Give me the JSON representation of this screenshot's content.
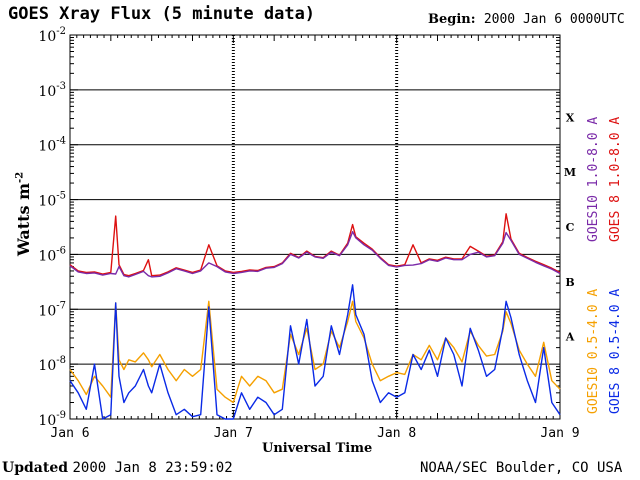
{
  "header": {
    "title": "GOES Xray Flux (5 minute data)",
    "begin_label": "Begin:",
    "begin_value": "2000 Jan 6 0000UTC"
  },
  "footer": {
    "updated_label": "Updated",
    "updated_value": "2000 Jan  8 23:59:02",
    "source": "NOAA/SEC Boulder, CO USA"
  },
  "colors": {
    "goes10_long": "#7a2aa8",
    "goes8_long": "#dd1111",
    "goes10_short": "#f5a000",
    "goes8_short": "#0a2ae6",
    "grid": "#000000"
  },
  "chart_data": {
    "type": "line",
    "title": "GOES Xray Flux (5 minute data)",
    "xlabel": "Universal Time",
    "ylabel": "Watts m",
    "ylabel_exp": "-2",
    "yscale": "log",
    "ylim": [
      1e-09,
      0.01
    ],
    "xlim": [
      0,
      3
    ],
    "x_unit": "days since 2000 Jan 6 00:00 UT",
    "x_ticks": [
      {
        "x": 0,
        "label": "Jan 6"
      },
      {
        "x": 1,
        "label": "Jan 7"
      },
      {
        "x": 2,
        "label": "Jan 8"
      },
      {
        "x": 3,
        "label": "Jan 9"
      }
    ],
    "y_ticks": [
      {
        "exp": -9,
        "label": "10",
        "sup": "-9"
      },
      {
        "exp": -8,
        "label": "10",
        "sup": "-8"
      },
      {
        "exp": -7,
        "label": "10",
        "sup": "-7"
      },
      {
        "exp": -6,
        "label": "10",
        "sup": "-6"
      },
      {
        "exp": -5,
        "label": "10",
        "sup": "-5"
      },
      {
        "exp": -4,
        "label": "10",
        "sup": "-4"
      },
      {
        "exp": -3,
        "label": "10",
        "sup": "-3"
      },
      {
        "exp": -2,
        "label": "10",
        "sup": "-2"
      }
    ],
    "flare_classes": [
      {
        "label": "A",
        "exp": -7.5
      },
      {
        "label": "B",
        "exp": -6.5
      },
      {
        "label": "C",
        "exp": -5.5
      },
      {
        "label": "M",
        "exp": -4.5
      },
      {
        "label": "X",
        "exp": -3.5
      }
    ],
    "grid": true,
    "series": [
      {
        "name": "GOES10 1.0-8.0 A",
        "color": "#7a2aa8",
        "x": [
          0,
          0.05,
          0.1,
          0.15,
          0.2,
          0.25,
          0.28,
          0.3,
          0.33,
          0.36,
          0.4,
          0.45,
          0.48,
          0.5,
          0.55,
          0.6,
          0.65,
          0.7,
          0.75,
          0.8,
          0.85,
          0.9,
          0.95,
          1.0,
          1.05,
          1.1,
          1.15,
          1.2,
          1.25,
          1.3,
          1.35,
          1.4,
          1.45,
          1.5,
          1.55,
          1.6,
          1.65,
          1.7,
          1.73,
          1.75,
          1.8,
          1.85,
          1.9,
          1.95,
          2.0,
          2.05,
          2.1,
          2.15,
          2.2,
          2.25,
          2.3,
          2.35,
          2.4,
          2.45,
          2.5,
          2.55,
          2.6,
          2.65,
          2.67,
          2.7,
          2.75,
          2.8,
          2.85,
          2.9,
          2.95,
          3.0
        ],
        "y": [
          6.2e-07,
          4.8e-07,
          4.5e-07,
          4.6e-07,
          4.2e-07,
          4.5e-07,
          4.4e-07,
          6e-07,
          4.1e-07,
          3.9e-07,
          4.3e-07,
          4.9e-07,
          4.1e-07,
          3.9e-07,
          4e-07,
          4.6e-07,
          5.5e-07,
          5e-07,
          4.5e-07,
          5e-07,
          7e-07,
          6e-07,
          4.8e-07,
          4.5e-07,
          4.7e-07,
          5e-07,
          4.9e-07,
          5.6e-07,
          5.8e-07,
          6.8e-07,
          1e-06,
          8.6e-07,
          1.1e-06,
          9e-07,
          8.5e-07,
          1.1e-06,
          9.5e-07,
          1.5e-06,
          2.6e-06,
          2e-06,
          1.5e-06,
          1.2e-06,
          8.5e-07,
          6.3e-07,
          5.9e-07,
          6.3e-07,
          6.4e-07,
          6.8e-07,
          8e-07,
          7.5e-07,
          8.6e-07,
          8e-07,
          8e-07,
          1e-06,
          1.1e-06,
          9e-07,
          9.5e-07,
          1.6e-06,
          2.5e-06,
          1.8e-06,
          1e-06,
          8.5e-07,
          7.2e-07,
          6.2e-07,
          5.4e-07,
          4.5e-07
        ]
      },
      {
        "name": "GOES 8 1.0-8.0 A",
        "color": "#dd1111",
        "x": [
          0,
          0.05,
          0.1,
          0.15,
          0.2,
          0.25,
          0.28,
          0.3,
          0.33,
          0.36,
          0.4,
          0.45,
          0.48,
          0.5,
          0.55,
          0.6,
          0.65,
          0.7,
          0.75,
          0.8,
          0.85,
          0.9,
          0.95,
          1.0,
          1.05,
          1.1,
          1.15,
          1.2,
          1.25,
          1.3,
          1.35,
          1.4,
          1.45,
          1.5,
          1.55,
          1.6,
          1.65,
          1.7,
          1.73,
          1.75,
          1.8,
          1.85,
          1.9,
          1.95,
          2.0,
          2.05,
          2.1,
          2.15,
          2.2,
          2.25,
          2.3,
          2.35,
          2.4,
          2.45,
          2.5,
          2.55,
          2.6,
          2.65,
          2.67,
          2.7,
          2.75,
          2.8,
          2.85,
          2.9,
          2.95,
          3.0
        ],
        "y": [
          6.5e-07,
          5e-07,
          4.7e-07,
          4.8e-07,
          4.4e-07,
          4.7e-07,
          5e-06,
          6.5e-07,
          4.3e-07,
          4.1e-07,
          4.5e-07,
          5.1e-07,
          8e-07,
          4.1e-07,
          4.2e-07,
          4.8e-07,
          5.7e-07,
          5.2e-07,
          4.7e-07,
          5.2e-07,
          1.5e-06,
          6.2e-07,
          5e-07,
          4.7e-07,
          4.9e-07,
          5.2e-07,
          5.1e-07,
          5.8e-07,
          6e-07,
          7e-07,
          1.05e-06,
          8.8e-07,
          1.15e-06,
          9.2e-07,
          8.7e-07,
          1.15e-06,
          9.7e-07,
          1.6e-06,
          3.5e-06,
          2.1e-06,
          1.6e-06,
          1.25e-06,
          8.8e-07,
          6.5e-07,
          6.1e-07,
          6.5e-07,
          1.5e-06,
          7e-07,
          8.3e-07,
          7.8e-07,
          8.9e-07,
          8.3e-07,
          8.3e-07,
          1.4e-06,
          1.15e-06,
          9.3e-07,
          9.8e-07,
          1.7e-06,
          5.5e-06,
          1.9e-06,
          1.05e-06,
          8.8e-07,
          7.5e-07,
          6.5e-07,
          5.6e-07,
          4.7e-07
        ]
      },
      {
        "name": "GOES10 0.5-4.0 A",
        "color": "#f5a000",
        "x": [
          0,
          0.05,
          0.1,
          0.15,
          0.2,
          0.25,
          0.28,
          0.3,
          0.33,
          0.36,
          0.4,
          0.45,
          0.48,
          0.5,
          0.55,
          0.6,
          0.65,
          0.7,
          0.75,
          0.8,
          0.85,
          0.9,
          0.95,
          1.0,
          1.05,
          1.1,
          1.15,
          1.2,
          1.25,
          1.3,
          1.35,
          1.4,
          1.45,
          1.5,
          1.55,
          1.6,
          1.65,
          1.7,
          1.73,
          1.75,
          1.8,
          1.85,
          1.9,
          1.95,
          2.0,
          2.05,
          2.1,
          2.15,
          2.2,
          2.25,
          2.3,
          2.35,
          2.4,
          2.45,
          2.5,
          2.55,
          2.6,
          2.65,
          2.67,
          2.7,
          2.75,
          2.8,
          2.85,
          2.9,
          2.95,
          3.0
        ],
        "y": [
          8e-09,
          5e-09,
          2.8e-09,
          6e-09,
          4e-09,
          2.5e-09,
          1.3e-07,
          1.2e-08,
          8e-09,
          1.2e-08,
          1.1e-08,
          1.6e-08,
          1.2e-08,
          9e-09,
          1.5e-08,
          8e-09,
          5e-09,
          8e-09,
          6e-09,
          8e-09,
          1.4e-07,
          3.5e-09,
          2.5e-09,
          2e-09,
          6e-09,
          4e-09,
          6e-09,
          5e-09,
          3e-09,
          3.5e-09,
          3.5e-08,
          1.5e-08,
          4.5e-08,
          8e-09,
          1e-08,
          4e-08,
          2e-08,
          6e-08,
          1.4e-07,
          6e-08,
          3e-08,
          1e-08,
          5e-09,
          6e-09,
          7e-09,
          6.5e-09,
          1.5e-08,
          1.2e-08,
          2.2e-08,
          1.2e-08,
          3e-08,
          2e-08,
          1.1e-08,
          4e-08,
          2.2e-08,
          1.4e-08,
          1.5e-08,
          4e-08,
          9e-08,
          5.5e-08,
          1.8e-08,
          1e-08,
          6e-09,
          2.5e-08,
          5e-09,
          3.5e-09
        ]
      },
      {
        "name": "GOES 8 0.5-4.0 A",
        "color": "#0a2ae6",
        "x": [
          0,
          0.05,
          0.1,
          0.15,
          0.2,
          0.25,
          0.28,
          0.3,
          0.33,
          0.36,
          0.4,
          0.45,
          0.48,
          0.5,
          0.55,
          0.6,
          0.65,
          0.7,
          0.75,
          0.8,
          0.85,
          0.9,
          0.95,
          1.0,
          1.05,
          1.1,
          1.15,
          1.2,
          1.25,
          1.3,
          1.35,
          1.4,
          1.45,
          1.5,
          1.55,
          1.6,
          1.65,
          1.7,
          1.73,
          1.75,
          1.8,
          1.85,
          1.9,
          1.95,
          2.0,
          2.05,
          2.1,
          2.15,
          2.2,
          2.25,
          2.3,
          2.35,
          2.4,
          2.45,
          2.5,
          2.55,
          2.6,
          2.65,
          2.67,
          2.7,
          2.75,
          2.8,
          2.85,
          2.9,
          2.95,
          3.0
        ],
        "y": [
          5e-09,
          3e-09,
          1.5e-09,
          1e-08,
          1e-09,
          1.2e-09,
          1.3e-07,
          6e-09,
          2e-09,
          3e-09,
          4e-09,
          8e-09,
          4e-09,
          3e-09,
          1e-08,
          3e-09,
          1.2e-09,
          1.5e-09,
          1.1e-09,
          1.2e-09,
          1.1e-07,
          1.2e-09,
          1e-09,
          1e-09,
          3e-09,
          1.5e-09,
          2.5e-09,
          2e-09,
          1.2e-09,
          1.5e-09,
          5e-08,
          1e-08,
          6.5e-08,
          4e-09,
          6e-09,
          5e-08,
          1.5e-08,
          8e-08,
          2.8e-07,
          8e-08,
          3.5e-08,
          5e-09,
          2e-09,
          3e-09,
          2.5e-09,
          3e-09,
          1.5e-08,
          8e-09,
          1.8e-08,
          6e-09,
          3e-08,
          1.5e-08,
          4e-09,
          4.5e-08,
          1.8e-08,
          6e-09,
          8e-09,
          4.5e-08,
          1.4e-07,
          7e-08,
          1.5e-08,
          5e-09,
          2e-09,
          2e-08,
          2e-09,
          1.2e-09
        ]
      }
    ],
    "legend": [
      {
        "text": "GOES10 1.0-8.0 A",
        "color": "#7a2aa8"
      },
      {
        "text": "GOES 8 1.0-8.0 A",
        "color": "#dd1111"
      },
      {
        "text": "GOES10 0.5-4.0 A",
        "color": "#f5a000"
      },
      {
        "text": "GOES 8 0.5-4.0 A",
        "color": "#0a2ae6"
      }
    ]
  }
}
